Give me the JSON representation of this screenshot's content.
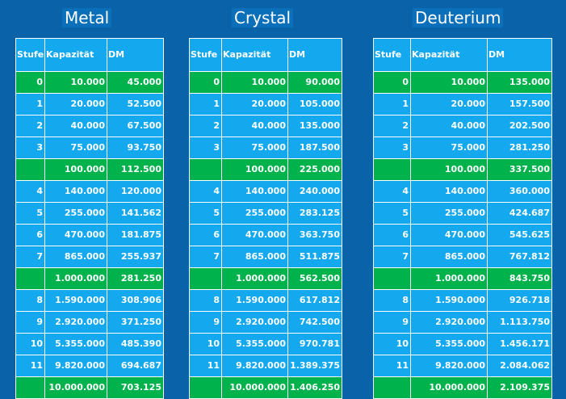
{
  "colors": {
    "background": "#0a63a8",
    "title_bg": "#0b6fba",
    "row_blue": "#14a8ef",
    "row_green": "#00b24c"
  },
  "headers": {
    "stufe": "Stufe",
    "kapazitaet": "Kapazität",
    "dm": "DM"
  },
  "panels": [
    {
      "title": "Metal",
      "rows": [
        {
          "stufe": "0",
          "kap": "10.000",
          "dm": "45.000",
          "green": true
        },
        {
          "stufe": "1",
          "kap": "20.000",
          "dm": "52.500",
          "green": false
        },
        {
          "stufe": "2",
          "kap": "40.000",
          "dm": "67.500",
          "green": false
        },
        {
          "stufe": "3",
          "kap": "75.000",
          "dm": "93.750",
          "green": false
        },
        {
          "stufe": "",
          "kap": "100.000",
          "dm": "112.500",
          "green": true
        },
        {
          "stufe": "4",
          "kap": "140.000",
          "dm": "120.000",
          "green": false
        },
        {
          "stufe": "5",
          "kap": "255.000",
          "dm": "141.562",
          "green": false
        },
        {
          "stufe": "6",
          "kap": "470.000",
          "dm": "181.875",
          "green": false
        },
        {
          "stufe": "7",
          "kap": "865.000",
          "dm": "255.937",
          "green": false
        },
        {
          "stufe": "",
          "kap": "1.000.000",
          "dm": "281.250",
          "green": true
        },
        {
          "stufe": "8",
          "kap": "1.590.000",
          "dm": "308.906",
          "green": false
        },
        {
          "stufe": "9",
          "kap": "2.920.000",
          "dm": "371.250",
          "green": false
        },
        {
          "stufe": "10",
          "kap": "5.355.000",
          "dm": "485.390",
          "green": false
        },
        {
          "stufe": "11",
          "kap": "9.820.000",
          "dm": "694.687",
          "green": false
        },
        {
          "stufe": "",
          "kap": "10.000.000",
          "dm": "703.125",
          "green": true
        }
      ]
    },
    {
      "title": "Crystal",
      "rows": [
        {
          "stufe": "0",
          "kap": "10.000",
          "dm": "90.000",
          "green": true
        },
        {
          "stufe": "1",
          "kap": "20.000",
          "dm": "105.000",
          "green": false
        },
        {
          "stufe": "2",
          "kap": "40.000",
          "dm": "135.000",
          "green": false
        },
        {
          "stufe": "3",
          "kap": "75.000",
          "dm": "187.500",
          "green": false
        },
        {
          "stufe": "",
          "kap": "100.000",
          "dm": "225.000",
          "green": true
        },
        {
          "stufe": "4",
          "kap": "140.000",
          "dm": "240.000",
          "green": false
        },
        {
          "stufe": "5",
          "kap": "255.000",
          "dm": "283.125",
          "green": false
        },
        {
          "stufe": "6",
          "kap": "470.000",
          "dm": "363.750",
          "green": false
        },
        {
          "stufe": "7",
          "kap": "865.000",
          "dm": "511.875",
          "green": false
        },
        {
          "stufe": "",
          "kap": "1.000.000",
          "dm": "562.500",
          "green": true
        },
        {
          "stufe": "8",
          "kap": "1.590.000",
          "dm": "617.812",
          "green": false
        },
        {
          "stufe": "9",
          "kap": "2.920.000",
          "dm": "742.500",
          "green": false
        },
        {
          "stufe": "10",
          "kap": "5.355.000",
          "dm": "970.781",
          "green": false
        },
        {
          "stufe": "11",
          "kap": "9.820.000",
          "dm": "1.389.375",
          "green": false
        },
        {
          "stufe": "",
          "kap": "10.000.000",
          "dm": "1.406.250",
          "green": true
        }
      ]
    },
    {
      "title": "Deuterium",
      "rows": [
        {
          "stufe": "0",
          "kap": "10.000",
          "dm": "135.000",
          "green": true
        },
        {
          "stufe": "1",
          "kap": "20.000",
          "dm": "157.500",
          "green": false
        },
        {
          "stufe": "2",
          "kap": "40.000",
          "dm": "202.500",
          "green": false
        },
        {
          "stufe": "3",
          "kap": "75.000",
          "dm": "281.250",
          "green": false
        },
        {
          "stufe": "",
          "kap": "100.000",
          "dm": "337.500",
          "green": true
        },
        {
          "stufe": "4",
          "kap": "140.000",
          "dm": "360.000",
          "green": false
        },
        {
          "stufe": "5",
          "kap": "255.000",
          "dm": "424.687",
          "green": false
        },
        {
          "stufe": "6",
          "kap": "470.000",
          "dm": "545.625",
          "green": false
        },
        {
          "stufe": "7",
          "kap": "865.000",
          "dm": "767.812",
          "green": false
        },
        {
          "stufe": "",
          "kap": "1.000.000",
          "dm": "843.750",
          "green": true
        },
        {
          "stufe": "8",
          "kap": "1.590.000",
          "dm": "926.718",
          "green": false
        },
        {
          "stufe": "9",
          "kap": "2.920.000",
          "dm": "1.113.750",
          "green": false
        },
        {
          "stufe": "10",
          "kap": "5.355.000",
          "dm": "1.456.171",
          "green": false
        },
        {
          "stufe": "11",
          "kap": "9.820.000",
          "dm": "2.084.062",
          "green": false
        },
        {
          "stufe": "",
          "kap": "10.000.000",
          "dm": "2.109.375",
          "green": true
        }
      ]
    }
  ]
}
